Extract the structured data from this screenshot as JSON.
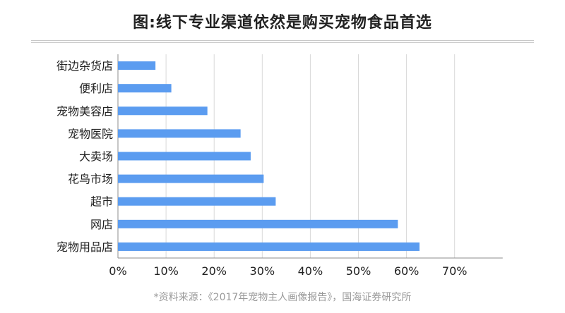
{
  "title": "图:线下专业渠道依然是购买宠物食品首选",
  "source": "*资料来源：《2017年宠物主人画像报告》，国海证券研究所",
  "colors": {
    "bar": "#5b9cf0",
    "grid": "#d9d9d9",
    "axis": "#8c8c8c",
    "text": "#222222"
  },
  "chart_data": {
    "type": "bar",
    "orientation": "horizontal",
    "categories": [
      "街边杂货店",
      "便利店",
      "宠物美容店",
      "宠物医院",
      "大卖场",
      "花鸟市场",
      "超市",
      "网店",
      "宠物用品店"
    ],
    "values": [
      0.078,
      0.111,
      0.186,
      0.255,
      0.276,
      0.303,
      0.328,
      0.582,
      0.627
    ],
    "xlim": [
      0,
      0.8
    ],
    "xticks": [
      0,
      0.1,
      0.2,
      0.3,
      0.4,
      0.5,
      0.6,
      0.7
    ],
    "xtick_labels": [
      "0%",
      "10%",
      "20%",
      "30%",
      "40%",
      "50%",
      "60%",
      "70%"
    ],
    "grid": true,
    "legend": false
  }
}
